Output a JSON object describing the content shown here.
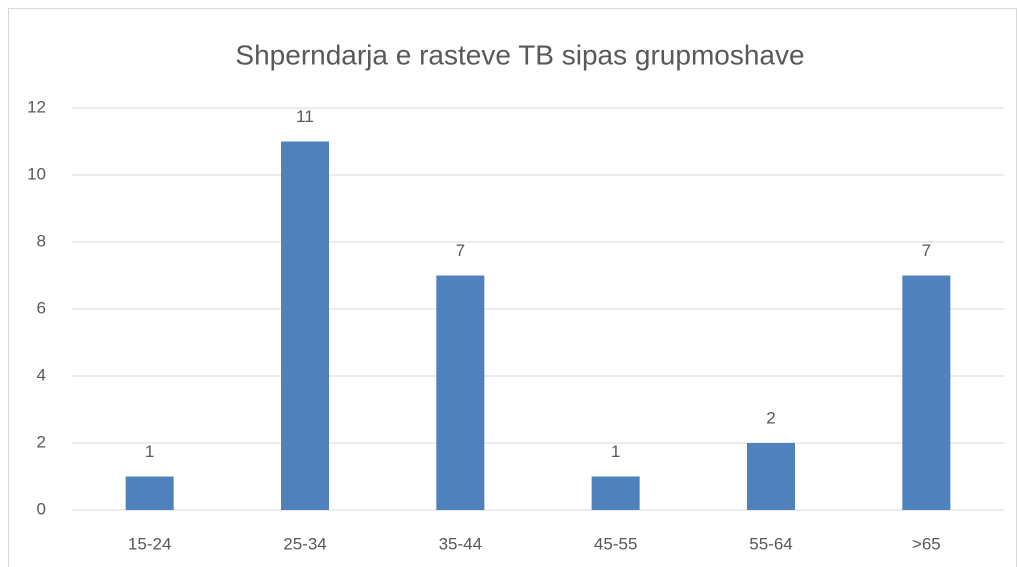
{
  "chart_data": {
    "type": "bar",
    "title": "Shperndarja e rasteve TB sipas grupmoshave",
    "categories": [
      "15-24",
      "25-34",
      "35-44",
      "45-55",
      "55-64",
      ">65"
    ],
    "values": [
      1,
      11,
      7,
      1,
      2,
      7
    ],
    "color": "#4f81bd",
    "ylim": [
      0,
      12
    ],
    "yticks": [
      0,
      2,
      4,
      6,
      8,
      10,
      12
    ],
    "grid": true,
    "data_labels": true
  }
}
